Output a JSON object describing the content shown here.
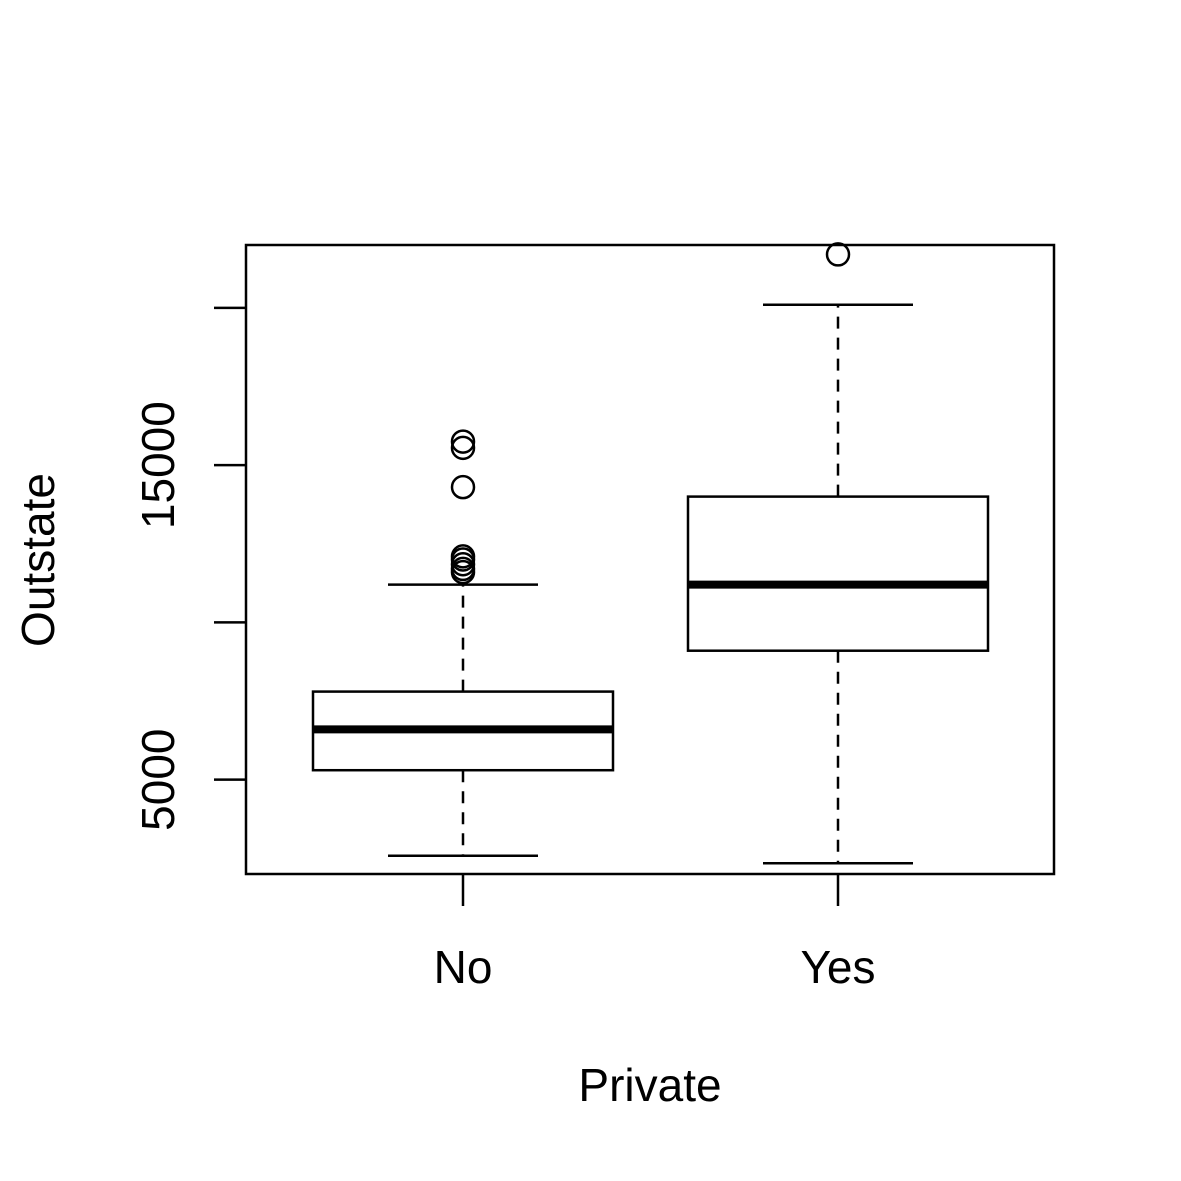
{
  "chart_data": {
    "type": "box",
    "xlabel": "Private",
    "ylabel": "Outstate",
    "ylim": [
      2000,
      22000
    ],
    "y_ticks": [
      5000,
      10000,
      15000,
      20000
    ],
    "y_tick_labels": [
      "5000",
      "",
      "15000",
      ""
    ],
    "categories": [
      "No",
      "Yes"
    ],
    "boxes": [
      {
        "category": "No",
        "whisker_low": 2580,
        "q1": 5300,
        "median": 6600,
        "q3": 7800,
        "whisker_high": 11200,
        "outliers": [
          11600,
          11700,
          11850,
          12000,
          12100,
          14300,
          15550,
          15750
        ]
      },
      {
        "category": "Yes",
        "whisker_low": 2340,
        "q1": 9100,
        "median": 11200,
        "q3": 14000,
        "whisker_high": 20100,
        "outliers": [
          21700
        ]
      }
    ]
  }
}
